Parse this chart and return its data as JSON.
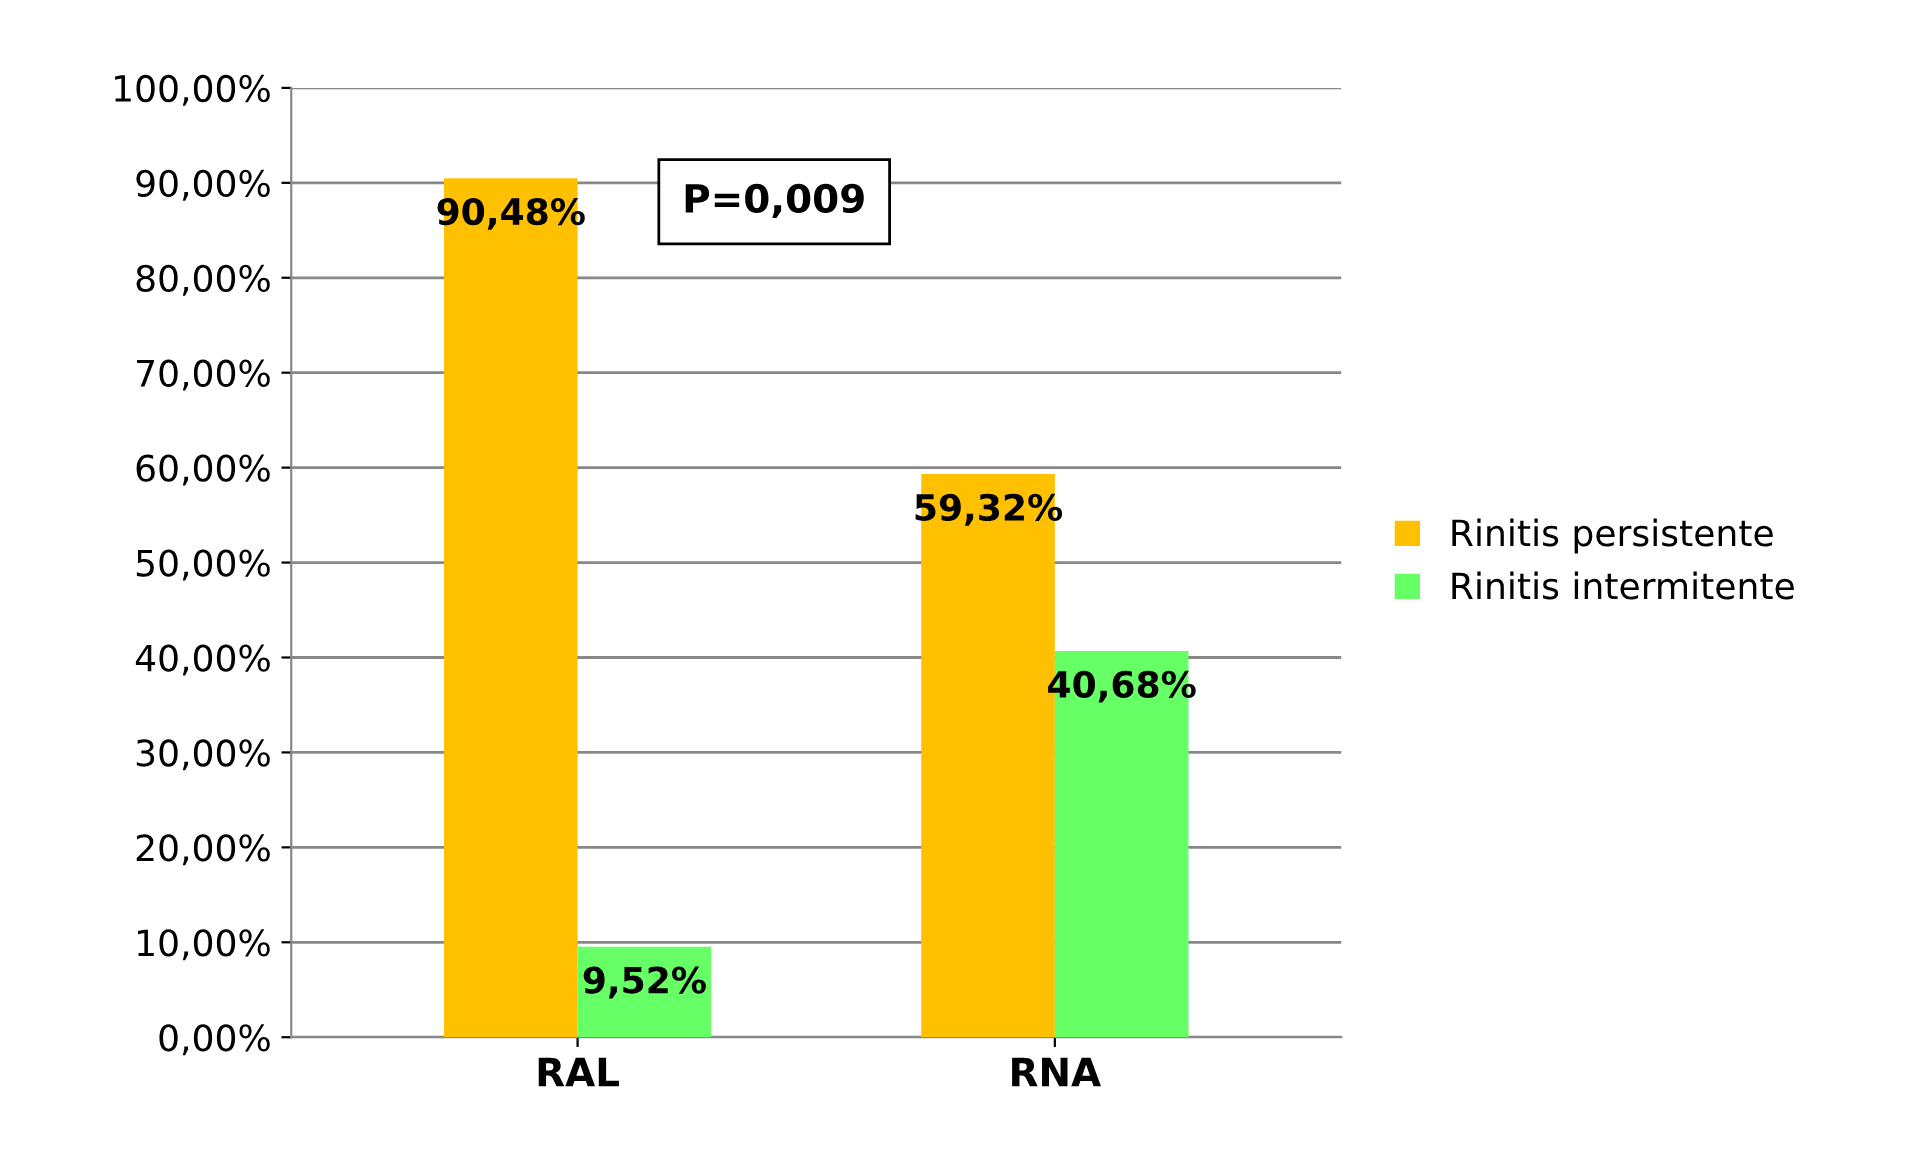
{
  "chart_data": {
    "type": "bar",
    "categories": [
      "RAL",
      "RNA"
    ],
    "series": [
      {
        "name": "Rinitis persistente",
        "color": "#ffc000",
        "values": [
          90.48,
          59.32
        ],
        "value_labels": [
          "90,48%",
          "59,32%"
        ]
      },
      {
        "name": "Rinitis intermitente",
        "color": "#66ff66",
        "values": [
          9.52,
          40.68
        ],
        "value_labels": [
          "9,52%",
          "40,68%"
        ]
      }
    ],
    "ylim": [
      0,
      100
    ],
    "yticks": [
      {
        "value": 0,
        "label": "0,00%"
      },
      {
        "value": 10,
        "label": "10,00%"
      },
      {
        "value": 20,
        "label": "20,00%"
      },
      {
        "value": 30,
        "label": "30,00%"
      },
      {
        "value": 40,
        "label": "40,00%"
      },
      {
        "value": 50,
        "label": "50,00%"
      },
      {
        "value": 60,
        "label": "60,00%"
      },
      {
        "value": 70,
        "label": "70,00%"
      },
      {
        "value": 80,
        "label": "80,00%"
      },
      {
        "value": 90,
        "label": "90,00%"
      },
      {
        "value": 100,
        "label": "100,00%"
      }
    ],
    "grid": "y",
    "legend": "right",
    "annotations": [
      "P=0,009"
    ]
  }
}
